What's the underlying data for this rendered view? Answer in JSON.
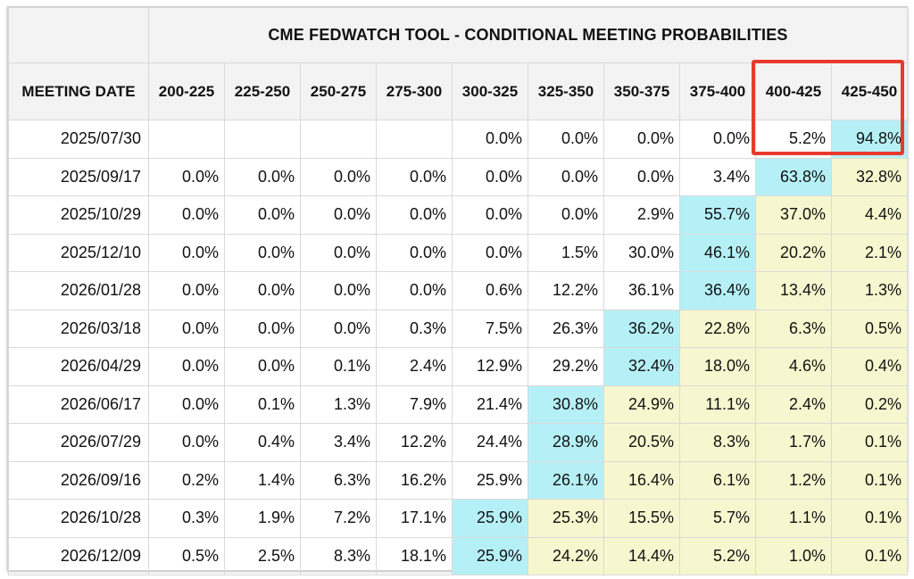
{
  "title": "CME FEDWATCH TOOL - CONDITIONAL MEETING PROBABILITIES",
  "meeting_date_header": "MEETING DATE",
  "rate_ranges": [
    "200-225",
    "225-250",
    "250-275",
    "275-300",
    "300-325",
    "325-350",
    "350-375",
    "375-400",
    "400-425",
    "425-450"
  ],
  "highlighted_columns": [
    "400-425",
    "425-450"
  ],
  "highlight_color": "#e83a2e",
  "cell_colors": {
    "mode": "#b6f0f7",
    "above_mode": "#f7f7cf"
  },
  "rows": [
    {
      "date": "2025/07/30",
      "values": [
        "",
        "",
        "",
        "",
        "0.0%",
        "0.0%",
        "0.0%",
        "0.0%",
        "5.2%",
        "94.8%"
      ],
      "styles": [
        "",
        "",
        "",
        "",
        "",
        "",
        "",
        "",
        "",
        "blue"
      ]
    },
    {
      "date": "2025/09/17",
      "values": [
        "0.0%",
        "0.0%",
        "0.0%",
        "0.0%",
        "0.0%",
        "0.0%",
        "0.0%",
        "3.4%",
        "63.8%",
        "32.8%"
      ],
      "styles": [
        "",
        "",
        "",
        "",
        "",
        "",
        "",
        "",
        "blue",
        "yellow"
      ]
    },
    {
      "date": "2025/10/29",
      "values": [
        "0.0%",
        "0.0%",
        "0.0%",
        "0.0%",
        "0.0%",
        "0.0%",
        "2.9%",
        "55.7%",
        "37.0%",
        "4.4%"
      ],
      "styles": [
        "",
        "",
        "",
        "",
        "",
        "",
        "",
        "blue",
        "yellow",
        "yellow"
      ]
    },
    {
      "date": "2025/12/10",
      "values": [
        "0.0%",
        "0.0%",
        "0.0%",
        "0.0%",
        "0.0%",
        "1.5%",
        "30.0%",
        "46.1%",
        "20.2%",
        "2.1%"
      ],
      "styles": [
        "",
        "",
        "",
        "",
        "",
        "",
        "",
        "blue",
        "yellow",
        "yellow"
      ]
    },
    {
      "date": "2026/01/28",
      "values": [
        "0.0%",
        "0.0%",
        "0.0%",
        "0.0%",
        "0.6%",
        "12.2%",
        "36.1%",
        "36.4%",
        "13.4%",
        "1.3%"
      ],
      "styles": [
        "",
        "",
        "",
        "",
        "",
        "",
        "",
        "blue",
        "yellow",
        "yellow"
      ]
    },
    {
      "date": "2026/03/18",
      "values": [
        "0.0%",
        "0.0%",
        "0.0%",
        "0.3%",
        "7.5%",
        "26.3%",
        "36.2%",
        "22.8%",
        "6.3%",
        "0.5%"
      ],
      "styles": [
        "",
        "",
        "",
        "",
        "",
        "",
        "blue",
        "yellow",
        "yellow",
        "yellow"
      ]
    },
    {
      "date": "2026/04/29",
      "values": [
        "0.0%",
        "0.0%",
        "0.1%",
        "2.4%",
        "12.9%",
        "29.2%",
        "32.4%",
        "18.0%",
        "4.6%",
        "0.4%"
      ],
      "styles": [
        "",
        "",
        "",
        "",
        "",
        "",
        "blue",
        "yellow",
        "yellow",
        "yellow"
      ]
    },
    {
      "date": "2026/06/17",
      "values": [
        "0.0%",
        "0.1%",
        "1.3%",
        "7.9%",
        "21.4%",
        "30.8%",
        "24.9%",
        "11.1%",
        "2.4%",
        "0.2%"
      ],
      "styles": [
        "",
        "",
        "",
        "",
        "",
        "blue",
        "yellow",
        "yellow",
        "yellow",
        "yellow"
      ]
    },
    {
      "date": "2026/07/29",
      "values": [
        "0.0%",
        "0.4%",
        "3.4%",
        "12.2%",
        "24.4%",
        "28.9%",
        "20.5%",
        "8.3%",
        "1.7%",
        "0.1%"
      ],
      "styles": [
        "",
        "",
        "",
        "",
        "",
        "blue",
        "yellow",
        "yellow",
        "yellow",
        "yellow"
      ]
    },
    {
      "date": "2026/09/16",
      "values": [
        "0.2%",
        "1.4%",
        "6.3%",
        "16.2%",
        "25.9%",
        "26.1%",
        "16.4%",
        "6.1%",
        "1.2%",
        "0.1%"
      ],
      "styles": [
        "",
        "",
        "",
        "",
        "",
        "blue",
        "yellow",
        "yellow",
        "yellow",
        "yellow"
      ]
    },
    {
      "date": "2026/10/28",
      "values": [
        "0.3%",
        "1.9%",
        "7.2%",
        "17.1%",
        "25.9%",
        "25.3%",
        "15.5%",
        "5.7%",
        "1.1%",
        "0.1%"
      ],
      "styles": [
        "",
        "",
        "",
        "",
        "blue",
        "yellow",
        "yellow",
        "yellow",
        "yellow",
        "yellow"
      ]
    },
    {
      "date": "2026/12/09",
      "values": [
        "0.5%",
        "2.5%",
        "8.3%",
        "18.1%",
        "25.9%",
        "24.2%",
        "14.4%",
        "5.2%",
        "1.0%",
        "0.1%"
      ],
      "styles": [
        "",
        "",
        "",
        "",
        "blue",
        "yellow",
        "yellow",
        "yellow",
        "yellow",
        "yellow"
      ]
    }
  ]
}
